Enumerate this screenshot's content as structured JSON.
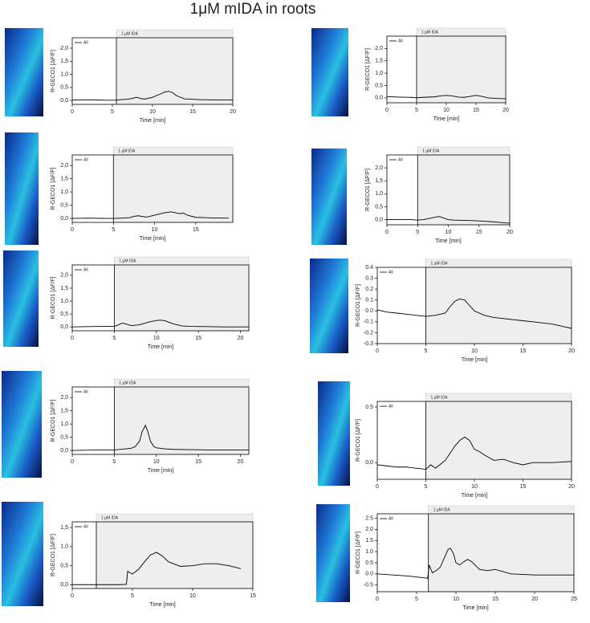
{
  "title": "1μM mIDA in roots",
  "chart_data": [
    {
      "type": "line",
      "ylabel": "R-GECO1 [ΔF/F]",
      "xlabel": "Time [min]",
      "annotation": "1 µM IDA",
      "ida_start": 5.5,
      "xlim": [
        0,
        20
      ],
      "xticks": [
        0,
        5,
        10,
        15,
        20
      ],
      "ylim": [
        -0.15,
        2.4
      ],
      "yticks": [
        {
          "value": 0,
          "label": "0,0"
        },
        {
          "value": 0.5,
          "label": "0,5"
        },
        {
          "value": 1,
          "label": "1,0"
        },
        {
          "value": 1.5,
          "label": "1,5"
        },
        {
          "value": 2,
          "label": "2,0"
        }
      ],
      "x": [
        0,
        2,
        4,
        5.5,
        6,
        7,
        7.5,
        8,
        8.5,
        9,
        10,
        11,
        11.5,
        12,
        12.5,
        13,
        14,
        16,
        18,
        20
      ],
      "series": [
        {
          "name": "All",
          "color": "#000000",
          "values": [
            0.02,
            0.02,
            0.01,
            0.01,
            0.03,
            0.05,
            0.08,
            0.12,
            0.08,
            0.05,
            0.12,
            0.25,
            0.32,
            0.35,
            0.3,
            0.18,
            0.06,
            0.03,
            0.02,
            0.02
          ]
        }
      ]
    },
    {
      "type": "line",
      "ylabel": "R-GECO1 [ΔF/F]",
      "xlabel": "Time [min]",
      "annotation": "1 µM IDA",
      "ida_start": 5,
      "xlim": [
        0,
        20
      ],
      "xticks": [
        0,
        5,
        10,
        15,
        20
      ],
      "ylim": [
        -0.2,
        2.5
      ],
      "yticks": [
        {
          "value": 0,
          "label": "0,0"
        },
        {
          "value": 0.5,
          "label": "0,5"
        },
        {
          "value": 1,
          "label": "1,0"
        },
        {
          "value": 1.5,
          "label": "1,5"
        },
        {
          "value": 2,
          "label": "2,0"
        }
      ],
      "x": [
        0,
        2,
        4,
        5,
        6,
        8,
        9,
        10,
        11,
        12,
        13,
        14,
        15,
        16,
        17,
        18,
        20
      ],
      "series": [
        {
          "name": "All",
          "color": "#000000",
          "values": [
            0.05,
            0.03,
            0.02,
            0.0,
            0.02,
            0.04,
            0.08,
            0.1,
            0.08,
            0.03,
            0.02,
            0.06,
            0.1,
            0.06,
            0.0,
            -0.02,
            -0.04
          ]
        }
      ]
    },
    {
      "type": "line",
      "ylabel": "R-GECO1 [ΔF/F]",
      "xlabel": "Time [min]",
      "annotation": "1 µM IDA",
      "ida_start": 5,
      "xlim": [
        0,
        19.5
      ],
      "xticks": [
        0,
        5,
        10,
        15
      ],
      "ylim": [
        -0.15,
        2.4
      ],
      "yticks": [
        {
          "value": 0,
          "label": "0,0"
        },
        {
          "value": 0.5,
          "label": "0,5"
        },
        {
          "value": 1,
          "label": "1,0"
        },
        {
          "value": 1.5,
          "label": "1,5"
        },
        {
          "value": 2,
          "label": "2,0"
        }
      ],
      "x": [
        0,
        2,
        4,
        5,
        6,
        7,
        7.5,
        8,
        9,
        10,
        11,
        12,
        12.5,
        13,
        13.5,
        14,
        15,
        17,
        19
      ],
      "series": [
        {
          "name": "All",
          "color": "#000000",
          "values": [
            0.0,
            0.01,
            0.0,
            0.0,
            0.01,
            0.03,
            0.08,
            0.1,
            0.05,
            0.12,
            0.2,
            0.25,
            0.22,
            0.18,
            0.2,
            0.12,
            0.04,
            0.02,
            0.01
          ]
        }
      ]
    },
    {
      "type": "line",
      "ylabel": "R-GECO1 [ΔF/F]",
      "xlabel": "Time [min]",
      "annotation": "1 µM IDA",
      "ida_start": 5,
      "xlim": [
        0,
        20
      ],
      "xticks": [
        0,
        5,
        10,
        15,
        20
      ],
      "ylim": [
        -0.2,
        2.5
      ],
      "yticks": [
        {
          "value": 0,
          "label": "0,0"
        },
        {
          "value": 0.5,
          "label": "0,5"
        },
        {
          "value": 1,
          "label": "1,0"
        },
        {
          "value": 1.5,
          "label": "1,5"
        },
        {
          "value": 2,
          "label": "2,0"
        }
      ],
      "x": [
        0,
        2,
        4,
        5,
        6,
        7,
        8,
        8.5,
        9,
        10,
        11,
        13,
        15,
        17,
        19,
        20
      ],
      "series": [
        {
          "name": "All",
          "color": "#000000",
          "values": [
            0.0,
            0.0,
            0.0,
            -0.02,
            0.0,
            0.05,
            0.1,
            0.12,
            0.08,
            0.0,
            -0.02,
            -0.03,
            -0.05,
            -0.08,
            -0.12,
            -0.14
          ]
        }
      ]
    },
    {
      "type": "line",
      "ylabel": "R-GECO1 [ΔF/F]",
      "xlabel": "Time [min]",
      "annotation": "1 µM IDA",
      "ida_start": 5,
      "xlim": [
        0,
        21
      ],
      "xticks": [
        0,
        5,
        10,
        15,
        20
      ],
      "ylim": [
        -0.15,
        2.4
      ],
      "yticks": [
        {
          "value": 0,
          "label": "0,0"
        },
        {
          "value": 0.5,
          "label": "0,5"
        },
        {
          "value": 1,
          "label": "1,0"
        },
        {
          "value": 1.5,
          "label": "1,5"
        },
        {
          "value": 2,
          "label": "2,0"
        }
      ],
      "x": [
        0,
        2,
        4,
        5,
        5.5,
        6,
        6.5,
        7,
        8,
        9,
        10,
        10.5,
        11,
        12,
        13,
        14,
        16,
        18,
        21
      ],
      "series": [
        {
          "name": "All",
          "color": "#000000",
          "values": [
            0.0,
            0.01,
            0.02,
            0.02,
            0.08,
            0.15,
            0.1,
            0.05,
            0.08,
            0.18,
            0.25,
            0.26,
            0.24,
            0.12,
            0.04,
            0.02,
            0.01,
            0.0,
            0.0
          ]
        }
      ]
    },
    {
      "type": "line",
      "ylabel": "R-GECO1 [ΔF/F]",
      "xlabel": "Time [min]",
      "annotation": "1 µM IDA",
      "ida_start": 5,
      "xlim": [
        0,
        20
      ],
      "xticks": [
        0,
        5,
        10,
        15,
        20
      ],
      "ylim": [
        -0.3,
        0.4
      ],
      "yticks": [
        -0.3,
        -0.2,
        -0.1,
        {
          "value": 0,
          "label": "0.0"
        },
        0.1,
        0.2,
        0.3,
        0.4
      ],
      "x": [
        0,
        1,
        2,
        3,
        4,
        5,
        6,
        7,
        7.5,
        8,
        8.5,
        9,
        9.5,
        10,
        11,
        12,
        13,
        14,
        15,
        16,
        17,
        18,
        19,
        20
      ],
      "series": [
        {
          "name": "All",
          "color": "#000000",
          "values": [
            0.01,
            -0.01,
            -0.02,
            -0.03,
            -0.04,
            -0.05,
            -0.04,
            -0.02,
            0.04,
            0.09,
            0.11,
            0.1,
            0.05,
            0.0,
            -0.04,
            -0.06,
            -0.07,
            -0.08,
            -0.09,
            -0.1,
            -0.11,
            -0.12,
            -0.14,
            -0.16
          ]
        }
      ]
    },
    {
      "type": "line",
      "ylabel": "R-GECO1 [ΔF/F]",
      "xlabel": "Time [min]",
      "annotation": "1 µM IDA",
      "ida_start": 5,
      "xlim": [
        0,
        21
      ],
      "xticks": [
        0,
        5,
        10,
        15,
        20
      ],
      "ylim": [
        -0.15,
        2.4
      ],
      "yticks": [
        {
          "value": 0,
          "label": "0,0"
        },
        {
          "value": 0.5,
          "label": "0,5"
        },
        {
          "value": 1,
          "label": "1,0"
        },
        {
          "value": 1.5,
          "label": "1,5"
        },
        {
          "value": 2,
          "label": "2,0"
        }
      ],
      "x": [
        0,
        2,
        4,
        5,
        6,
        7,
        7.5,
        8,
        8.3,
        8.7,
        9,
        9.3,
        9.7,
        10,
        11,
        12,
        14,
        16,
        18,
        21
      ],
      "series": [
        {
          "name": "All",
          "color": "#000000",
          "values": [
            0.0,
            0.01,
            0.02,
            0.02,
            0.05,
            0.08,
            0.15,
            0.35,
            0.7,
            0.95,
            0.7,
            0.35,
            0.15,
            0.1,
            0.06,
            0.04,
            0.03,
            0.02,
            0.02,
            0.02
          ]
        }
      ]
    },
    {
      "type": "line",
      "ylabel": "R-GECO1 [ΔF/F]",
      "xlabel": "Time [min]",
      "annotation": "1 µM IDA",
      "ida_start": 5,
      "xlim": [
        0,
        20
      ],
      "xticks": [
        0,
        5,
        10,
        15,
        20
      ],
      "ylim": [
        -0.15,
        0.55
      ],
      "yticks": [
        {
          "value": 0,
          "label": "0.0"
        },
        0.5
      ],
      "x": [
        0,
        1,
        2,
        3,
        4,
        5,
        5.5,
        6,
        7,
        8,
        8.5,
        9,
        9.5,
        10,
        10.5,
        11,
        12,
        13,
        14,
        15,
        16,
        18,
        20
      ],
      "series": [
        {
          "name": "All",
          "color": "#000000",
          "values": [
            -0.02,
            -0.03,
            -0.04,
            -0.04,
            -0.05,
            -0.06,
            -0.02,
            -0.05,
            0.02,
            0.15,
            0.2,
            0.23,
            0.2,
            0.12,
            0.1,
            0.07,
            0.02,
            0.03,
            0.0,
            -0.02,
            0.0,
            0.0,
            0.01
          ]
        }
      ]
    },
    {
      "type": "line",
      "ylabel": "R-GECO1 [ΔF/F]",
      "xlabel": "Time [min]",
      "annotation": "1 µM IDA",
      "ida_start": 2,
      "xlim": [
        0,
        15
      ],
      "xticks": [
        0,
        5,
        10,
        15
      ],
      "ylim": [
        -0.1,
        1.65
      ],
      "yticks": [
        {
          "value": 0,
          "label": "0,0"
        },
        {
          "value": 0.5,
          "label": "0,5"
        },
        {
          "value": 1,
          "label": "1,0"
        },
        {
          "value": 1.5,
          "label": "1,5"
        }
      ],
      "x": [
        0,
        1,
        2,
        3,
        4,
        4.5,
        4.6,
        5,
        5.5,
        6,
        6.5,
        7,
        7.5,
        8,
        9,
        10,
        11,
        12,
        13,
        14
      ],
      "series": [
        {
          "name": "All",
          "color": "#000000",
          "values": [
            0.0,
            0.0,
            0.0,
            0.0,
            0.0,
            0.01,
            0.35,
            0.28,
            0.4,
            0.6,
            0.78,
            0.85,
            0.75,
            0.6,
            0.48,
            0.5,
            0.55,
            0.55,
            0.5,
            0.42
          ]
        }
      ]
    },
    {
      "type": "line",
      "ylabel": "R-GECO1 [ΔF/F]",
      "xlabel": "Time [min]",
      "annotation": "1 µM IDA",
      "ida_start": 6.5,
      "xlim": [
        0,
        25
      ],
      "xticks": [
        0,
        5,
        10,
        15,
        20,
        25
      ],
      "ylim": [
        -0.8,
        2.7
      ],
      "yticks": [
        -0.5,
        {
          "value": 0,
          "label": "0.0"
        },
        0.5,
        {
          "value": 1,
          "label": "1.0"
        },
        1.5,
        {
          "value": 2,
          "label": "2.0"
        },
        2.5
      ],
      "x": [
        0,
        2,
        4,
        6,
        6.4,
        6.6,
        7,
        7.5,
        8,
        8.5,
        9,
        9.3,
        9.7,
        10,
        10.5,
        11,
        11.5,
        12,
        13,
        14,
        15,
        16,
        17,
        20,
        25
      ],
      "series": [
        {
          "name": "All",
          "color": "#000000",
          "values": [
            0.0,
            -0.05,
            -0.1,
            -0.18,
            -0.2,
            0.4,
            0.05,
            0.15,
            0.3,
            0.7,
            1.1,
            1.15,
            0.9,
            0.5,
            0.4,
            0.55,
            0.65,
            0.55,
            0.2,
            0.15,
            0.2,
            0.1,
            0.0,
            -0.05,
            -0.05
          ]
        }
      ]
    }
  ]
}
